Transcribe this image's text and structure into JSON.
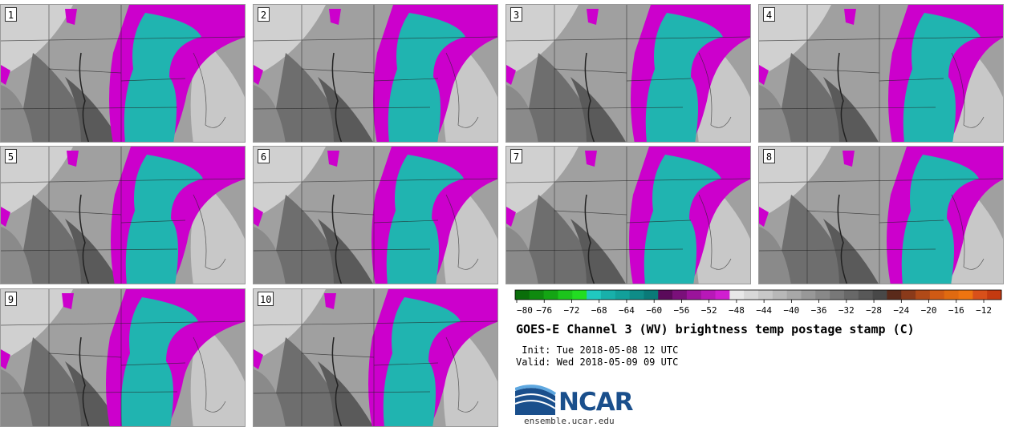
{
  "panels": [
    {
      "label": "1"
    },
    {
      "label": "2"
    },
    {
      "label": "3"
    },
    {
      "label": "4"
    },
    {
      "label": "5"
    },
    {
      "label": "6"
    },
    {
      "label": "7"
    },
    {
      "label": "8"
    },
    {
      "label": "9"
    },
    {
      "label": "10"
    }
  ],
  "colorbar": {
    "ticks": [
      "−80",
      "−76",
      "−72",
      "−68",
      "−64",
      "−60",
      "−56",
      "−52",
      "−48",
      "−44",
      "−40",
      "−36",
      "−32",
      "−28",
      "−24",
      "−20",
      "−16",
      "−12"
    ],
    "colors": [
      "#0a6e0a",
      "#0f8a0f",
      "#14a514",
      "#1cc41c",
      "#22dd22",
      "#20c8c0",
      "#18b0aa",
      "#12a09a",
      "#0e8c88",
      "#0a7a78",
      "#5a0a5a",
      "#7a107a",
      "#9a149a",
      "#b818b8",
      "#d01ed0",
      "#e8e8e8",
      "#d8d8d8",
      "#c8c8c8",
      "#b8b8b8",
      "#a8a8a8",
      "#989898",
      "#888888",
      "#787878",
      "#686868",
      "#585858",
      "#484848",
      "#5a2a1a",
      "#8a3a1a",
      "#b04a18",
      "#d05a14",
      "#e06a10",
      "#ee7410",
      "#d8501a",
      "#c43a10"
    ]
  },
  "title": "GOES-E Channel 3 (WV) brightness temp postage stamp (C)",
  "init_text": " Init: Tue 2018-05-08 12 UTC",
  "valid_text": "Valid: Wed 2018-05-09 09 UTC",
  "logo": {
    "text": "NCAR",
    "url": "ensemble.ucar.edu"
  },
  "colors": {
    "magenta": "#cc00cc",
    "teal": "#20b4b0",
    "gray_dark": "#5a5a5a",
    "gray_light": "#b4b4b4"
  }
}
